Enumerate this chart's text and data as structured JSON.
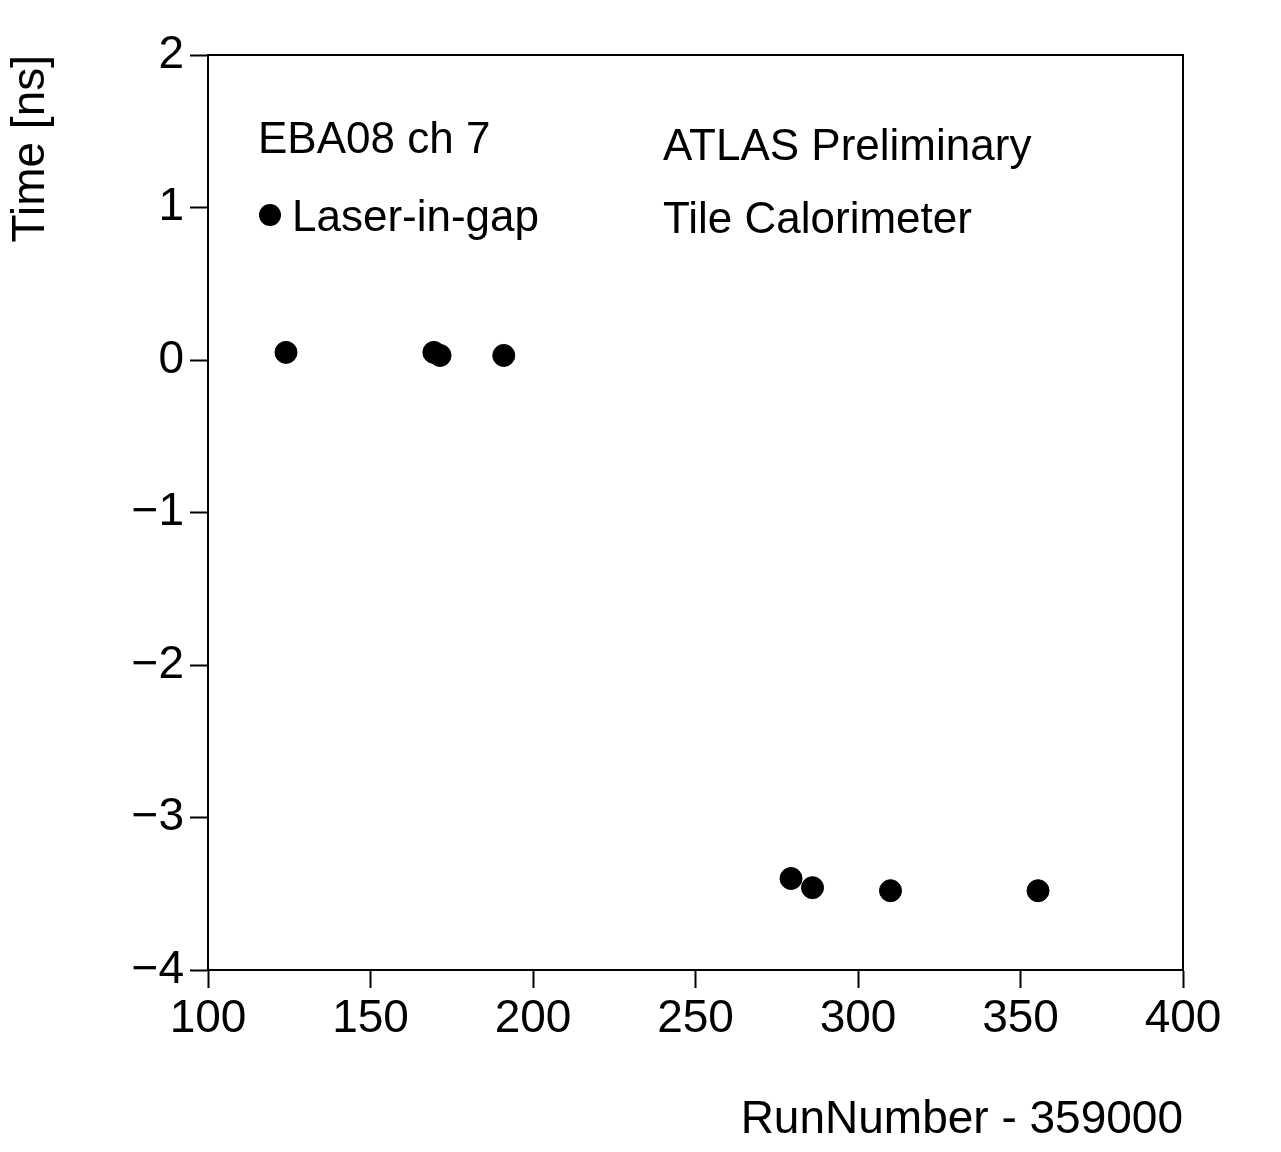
{
  "chart_data": {
    "type": "scatter",
    "xlabel": "RunNumber - 359000",
    "ylabel": "Time [ns]",
    "annotations": [
      "EBA08 ch 7",
      "ATLAS Preliminary",
      "Tile Calorimeter"
    ],
    "series": [
      {
        "name": "Laser-in-gap",
        "color": "#000000",
        "x": [
          124,
          169.5,
          171.4,
          191,
          279.4,
          286,
          310,
          355.4
        ],
        "values": [
          0.05,
          0.05,
          0.03,
          0.03,
          -3.4,
          -3.46,
          -3.48,
          -3.48
        ]
      }
    ],
    "marker": "circle",
    "legend": "top left",
    "grid": false,
    "xlim": [
      100,
      400
    ],
    "xticks": [
      100,
      150,
      200,
      250,
      300,
      350,
      400
    ],
    "ylim": [
      -4,
      2
    ],
    "yticks": [
      {
        "value": -4,
        "label": "−4"
      },
      {
        "value": -3,
        "label": "−3"
      },
      {
        "value": -2,
        "label": "−2"
      },
      {
        "value": -1,
        "label": "−1"
      },
      0,
      1,
      2
    ]
  }
}
